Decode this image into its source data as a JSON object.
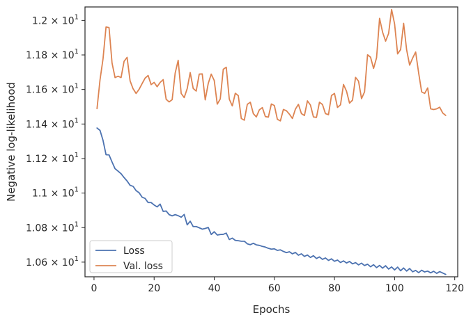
{
  "chart_data": {
    "type": "line",
    "xlabel": "Epochs",
    "ylabel": "Negative log-likelihood",
    "xlim": [
      -3,
      121
    ],
    "ylim": [
      10.515,
      12.078
    ],
    "x_ticks": [
      0,
      20,
      40,
      60,
      80,
      100,
      120
    ],
    "y_ticks": [
      {
        "value": 10.6,
        "mantissa": "1.06",
        "base": "10",
        "exp": "1"
      },
      {
        "value": 10.8,
        "mantissa": "1.08",
        "base": "10",
        "exp": "1"
      },
      {
        "value": 11.0,
        "mantissa": "1.1",
        "base": "10",
        "exp": "1"
      },
      {
        "value": 11.2,
        "mantissa": "1.12",
        "base": "10",
        "exp": "1"
      },
      {
        "value": 11.4,
        "mantissa": "1.14",
        "base": "10",
        "exp": "1"
      },
      {
        "value": 11.6,
        "mantissa": "1.16",
        "base": "10",
        "exp": "1"
      },
      {
        "value": 11.8,
        "mantissa": "1.18",
        "base": "10",
        "exp": "1"
      },
      {
        "value": 12.0,
        "mantissa": "1.2",
        "base": "10",
        "exp": "1"
      }
    ],
    "times_sign": "×",
    "grid": false,
    "legend_position": "lower-left",
    "series": [
      {
        "name": "Loss",
        "color": "#4c72b0",
        "x_start": 1,
        "x_step": 1,
        "values": [
          11.377,
          11.363,
          11.305,
          11.222,
          11.221,
          11.18,
          11.141,
          11.127,
          11.112,
          11.09,
          11.07,
          11.045,
          11.039,
          11.014,
          11.002,
          10.976,
          10.969,
          10.945,
          10.945,
          10.931,
          10.92,
          10.936,
          10.894,
          10.896,
          10.875,
          10.868,
          10.875,
          10.869,
          10.86,
          10.876,
          10.816,
          10.837,
          10.806,
          10.806,
          10.799,
          10.791,
          10.795,
          10.801,
          10.76,
          10.776,
          10.757,
          10.76,
          10.761,
          10.768,
          10.731,
          10.739,
          10.726,
          10.724,
          10.721,
          10.721,
          10.706,
          10.701,
          10.709,
          10.7,
          10.697,
          10.691,
          10.687,
          10.68,
          10.675,
          10.677,
          10.668,
          10.671,
          10.662,
          10.655,
          10.66,
          10.648,
          10.656,
          10.64,
          10.648,
          10.633,
          10.641,
          10.627,
          10.637,
          10.621,
          10.63,
          10.616,
          10.624,
          10.61,
          10.619,
          10.605,
          10.612,
          10.598,
          10.607,
          10.595,
          10.604,
          10.59,
          10.597,
          10.584,
          10.594,
          10.58,
          10.588,
          10.573,
          10.585,
          10.568,
          10.581,
          10.565,
          10.579,
          10.56,
          10.572,
          10.555,
          10.571,
          10.55,
          10.566,
          10.548,
          10.563,
          10.544,
          10.552,
          10.539,
          10.553,
          10.543,
          10.548,
          10.538,
          10.547,
          10.535,
          10.545,
          10.537,
          10.529
        ]
      },
      {
        "name": "Val. loss",
        "color": "#dd8452",
        "x_start": 1,
        "x_step": 1,
        "values": [
          11.489,
          11.656,
          11.778,
          11.962,
          11.958,
          11.753,
          11.669,
          11.677,
          11.669,
          11.763,
          11.786,
          11.65,
          11.604,
          11.577,
          11.601,
          11.634,
          11.666,
          11.681,
          11.628,
          11.641,
          11.616,
          11.641,
          11.657,
          11.543,
          11.528,
          11.541,
          11.695,
          11.769,
          11.577,
          11.553,
          11.605,
          11.698,
          11.606,
          11.591,
          11.689,
          11.69,
          11.54,
          11.635,
          11.689,
          11.652,
          11.515,
          11.545,
          11.717,
          11.729,
          11.544,
          11.505,
          11.578,
          11.564,
          11.432,
          11.422,
          11.514,
          11.526,
          11.46,
          11.441,
          11.482,
          11.495,
          11.443,
          11.44,
          11.516,
          11.507,
          11.427,
          11.418,
          11.484,
          11.477,
          11.457,
          11.432,
          11.486,
          11.514,
          11.46,
          11.449,
          11.534,
          11.51,
          11.441,
          11.438,
          11.526,
          11.513,
          11.46,
          11.454,
          11.565,
          11.577,
          11.496,
          11.511,
          11.629,
          11.59,
          11.521,
          11.538,
          11.67,
          11.648,
          11.547,
          11.586,
          11.801,
          11.787,
          11.722,
          11.784,
          12.012,
          11.932,
          11.88,
          11.924,
          12.063,
          11.979,
          11.806,
          11.831,
          11.983,
          11.83,
          11.741,
          11.782,
          11.817,
          11.696,
          11.586,
          11.577,
          11.609,
          11.488,
          11.484,
          11.488,
          11.497,
          11.464,
          11.45
        ]
      }
    ]
  }
}
